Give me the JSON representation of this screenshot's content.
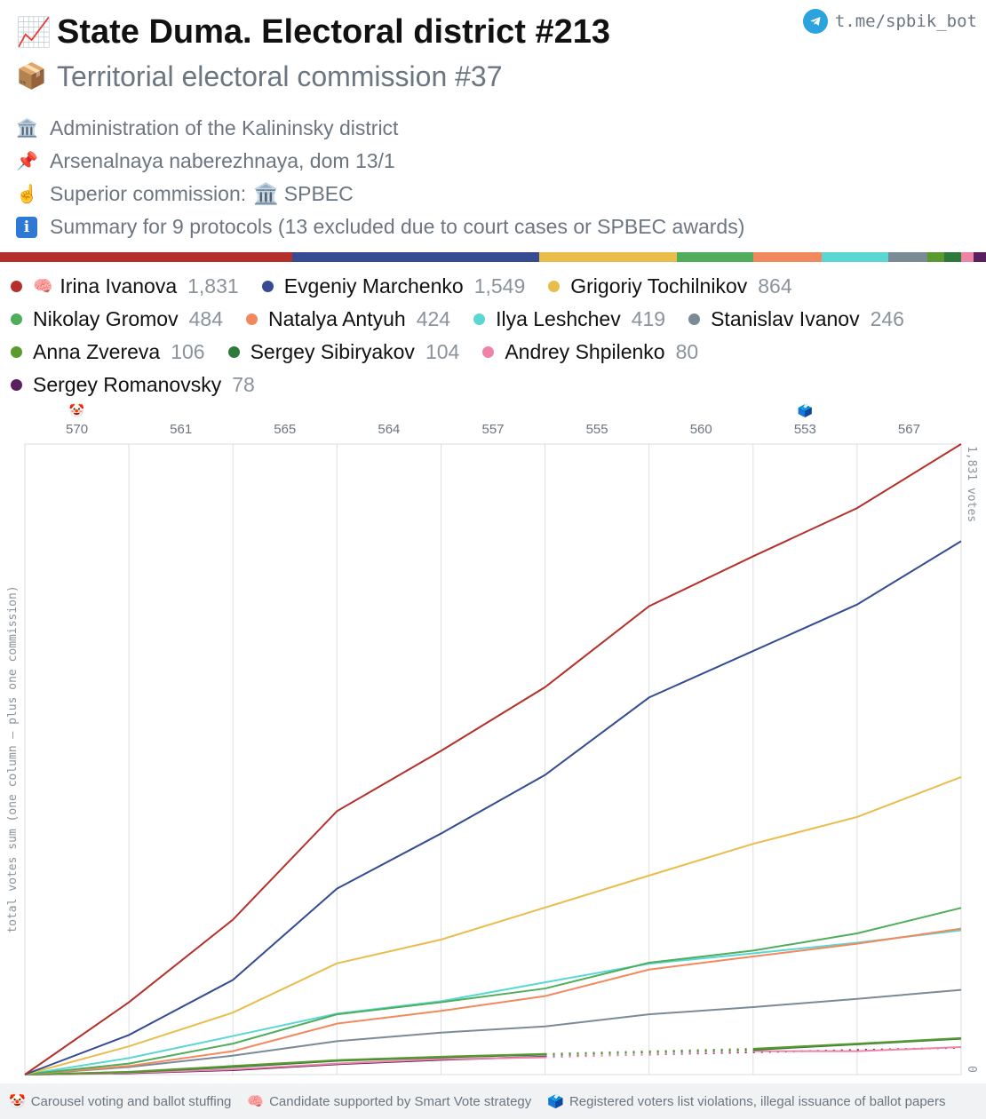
{
  "header": {
    "title_icon": "📈",
    "title": "State Duma. Electoral district #213",
    "subtitle_icon": "📦",
    "subtitle": "Territorial electoral commission #37",
    "telegram_link": "t.me/spbik_bot",
    "telegram_icon": "telegram-icon"
  },
  "info": {
    "administration_icon": "🏛️",
    "administration": "Administration of the Kalininsky district",
    "address_icon": "📌",
    "address": "Arsenalnaya naberezhnaya, dom 13/1",
    "superior_icon": "☝️",
    "superior_label": "Superior commission:",
    "superior_value_icon": "🏛️",
    "superior_value": "SPBEC",
    "summary_icon": "i",
    "summary": "Summary for 9 protocols (13 excluded due to court cases or SPBEC awards)"
  },
  "legend": [
    {
      "name": "Irina Ivanova",
      "value": "1,831",
      "color": "#b5302a",
      "badge": "🧠"
    },
    {
      "name": "Evgeniy Marchenko",
      "value": "1,549",
      "color": "#354c92",
      "badge": ""
    },
    {
      "name": "Grigoriy Tochilnikov",
      "value": "864",
      "color": "#e9bd4c",
      "badge": ""
    },
    {
      "name": "Nikolay Gromov",
      "value": "484",
      "color": "#4fad5b",
      "badge": ""
    },
    {
      "name": "Natalya Antyuh",
      "value": "424",
      "color": "#f2895e",
      "badge": ""
    },
    {
      "name": "Ilya Leshchev",
      "value": "419",
      "color": "#5ad7d3",
      "badge": ""
    },
    {
      "name": "Stanislav Ivanov",
      "value": "246",
      "color": "#7a8b96",
      "badge": ""
    },
    {
      "name": "Anna Zvereva",
      "value": "106",
      "color": "#5a9a2e",
      "badge": ""
    },
    {
      "name": "Sergey Sibiryakov",
      "value": "104",
      "color": "#2e7a3c",
      "badge": ""
    },
    {
      "name": "Andrey Shpilenko",
      "value": "80",
      "color": "#ef83a6",
      "badge": ""
    },
    {
      "name": "Sergey Romanovsky",
      "value": "78",
      "color": "#5a1f5e",
      "badge": ""
    }
  ],
  "chart_data": {
    "type": "line",
    "ylabel": "total votes sum (one column – plus one commission)",
    "right_max_label": "1,831 votes",
    "right_min_label": "0",
    "ylim": [
      0,
      1831
    ],
    "x_top_labels": [
      "570",
      "561",
      "565",
      "564",
      "557",
      "555",
      "560",
      "553",
      "567"
    ],
    "x_top_marks": [
      {
        "index": 0,
        "icon": "🤡"
      },
      {
        "index": 7,
        "icon": "🗳️"
      }
    ],
    "series": [
      {
        "name": "Irina Ivanova",
        "color": "#b5302a",
        "values": [
          0,
          210,
          450,
          765,
          940,
          1125,
          1360,
          1505,
          1645,
          1831
        ]
      },
      {
        "name": "Evgeniy Marchenko",
        "color": "#354c92",
        "values": [
          0,
          115,
          275,
          540,
          700,
          870,
          1095,
          1230,
          1365,
          1549
        ]
      },
      {
        "name": "Grigoriy Tochilnikov",
        "color": "#e9bd4c",
        "values": [
          0,
          82,
          180,
          323,
          392,
          485,
          578,
          670,
          748,
          864
        ]
      },
      {
        "name": "Nikolay Gromov",
        "color": "#4fad5b",
        "values": [
          0,
          32,
          90,
          175,
          210,
          250,
          325,
          360,
          410,
          484
        ]
      },
      {
        "name": "Natalya Antyuh",
        "color": "#f2895e",
        "values": [
          0,
          25,
          68,
          148,
          185,
          228,
          305,
          343,
          380,
          424
        ]
      },
      {
        "name": "Ilya Leshchev",
        "color": "#5ad7d3",
        "values": [
          0,
          48,
          112,
          177,
          213,
          268,
          322,
          352,
          383,
          419
        ]
      },
      {
        "name": "Stanislav Ivanov",
        "color": "#7a8b96",
        "values": [
          0,
          22,
          55,
          97,
          122,
          140,
          175,
          196,
          220,
          246
        ]
      },
      {
        "name": "Anna Zvereva",
        "color": "#5a9a2e",
        "values": [
          0,
          8,
          25,
          42,
          52,
          60,
          null,
          75,
          90,
          106
        ],
        "dashed_segments": [
          [
            5,
            7
          ]
        ]
      },
      {
        "name": "Sergey Sibiryakov",
        "color": "#2e7a3c",
        "values": [
          0,
          7,
          22,
          40,
          50,
          58,
          null,
          72,
          88,
          104
        ],
        "dashed_segments": [
          [
            5,
            7
          ]
        ]
      },
      {
        "name": "Andrey Shpilenko",
        "color": "#ef83a6",
        "values": [
          0,
          5,
          15,
          32,
          45,
          50,
          null,
          68,
          68,
          80
        ],
        "dashed_segments": [
          [
            5,
            7
          ]
        ]
      },
      {
        "name": "Sergey Romanovsky",
        "color": "#5a1f5e",
        "values": [
          0,
          4,
          13,
          30,
          43,
          52,
          null,
          null,
          null,
          78
        ],
        "dashed_segments": [
          [
            5,
            9
          ]
        ]
      }
    ]
  },
  "footer": [
    {
      "icon": "🤡",
      "text": "Carousel voting and ballot stuffing"
    },
    {
      "icon": "🧠",
      "text": "Candidate supported by Smart Vote strategy"
    },
    {
      "icon": "🗳️",
      "text": "Registered voters list violations, illegal issuance of ballot papers"
    }
  ]
}
